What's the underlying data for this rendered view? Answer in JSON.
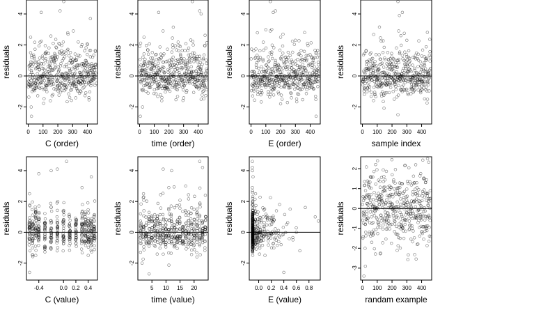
{
  "figure": {
    "ylabel": "residuals"
  },
  "chart_data": [
    {
      "type": "scatter",
      "xlabel": "C (order)",
      "xlim": [
        -12,
        468
      ],
      "ylim": [
        -3.1,
        4.9
      ],
      "xticks": [
        0,
        100,
        200,
        300,
        400
      ],
      "xtick_labels": [
        "0",
        "100",
        "200",
        "300",
        "400"
      ],
      "yticks": [
        -2,
        0,
        2,
        4
      ],
      "ytick_labels": [
        "-2",
        "0",
        "2",
        "4"
      ],
      "hline": 0,
      "generator": {
        "kind": "index",
        "n": 460,
        "x0": 1,
        "x1": 460,
        "sd": 0.62,
        "skew": 0.55,
        "seed": 11
      },
      "outliers": [
        [
          16,
          2.5
        ],
        [
          20,
          -2.0
        ],
        [
          88,
          4.1
        ],
        [
          240,
          4.8
        ],
        [
          215,
          4.2
        ],
        [
          305,
          2.9
        ],
        [
          420,
          3.7
        ],
        [
          22,
          -2.6
        ],
        [
          150,
          -1.6
        ],
        [
          410,
          -1.4
        ]
      ]
    },
    {
      "type": "scatter",
      "xlabel": "time (order)",
      "xlim": [
        -12,
        468
      ],
      "ylim": [
        -3.1,
        4.9
      ],
      "xticks": [
        0,
        100,
        200,
        300,
        400
      ],
      "xtick_labels": [
        "0",
        "100",
        "200",
        "300",
        "400"
      ],
      "yticks": [
        -2,
        0,
        2,
        4
      ],
      "ytick_labels": [
        "-2",
        "0",
        "2",
        "4"
      ],
      "hline": 0,
      "generator": {
        "kind": "index",
        "n": 460,
        "x0": 1,
        "x1": 460,
        "sd": 0.62,
        "skew": 0.55,
        "seed": 23
      },
      "outliers": [
        [
          20,
          -2.0
        ],
        [
          30,
          2.5
        ],
        [
          130,
          4.1
        ],
        [
          160,
          2.9
        ],
        [
          360,
          4.8
        ],
        [
          410,
          4.2
        ],
        [
          420,
          4.0
        ],
        [
          5,
          -2.6
        ],
        [
          420,
          -1.5
        ]
      ]
    },
    {
      "type": "scatter",
      "xlabel": "E (order)",
      "xlim": [
        -12,
        468
      ],
      "ylim": [
        -3.1,
        4.9
      ],
      "xticks": [
        0,
        100,
        200,
        300,
        400
      ],
      "xtick_labels": [
        "0",
        "100",
        "200",
        "300",
        "400"
      ],
      "yticks": [
        -2,
        0,
        2,
        4
      ],
      "ytick_labels": [
        "-2",
        "0",
        "2",
        "4"
      ],
      "hline": 0,
      "generator": {
        "kind": "index",
        "n": 460,
        "x0": 1,
        "x1": 460,
        "sd": 0.62,
        "skew": 0.55,
        "seed": 37
      },
      "outliers": [
        [
          130,
          4.8
        ],
        [
          150,
          4.1
        ],
        [
          165,
          4.2
        ],
        [
          140,
          3.0
        ],
        [
          130,
          2.9
        ],
        [
          200,
          2.5
        ],
        [
          440,
          -2.6
        ],
        [
          200,
          -1.8
        ],
        [
          210,
          -1.5
        ],
        [
          300,
          2.3
        ]
      ]
    },
    {
      "type": "scatter",
      "xlabel": "sample index",
      "xlim": [
        -12,
        468
      ],
      "ylim": [
        -3.1,
        4.9
      ],
      "xticks": [
        0,
        100,
        200,
        300,
        400
      ],
      "xtick_labels": [
        "0",
        "100",
        "200",
        "300",
        "400"
      ],
      "yticks": [
        -2,
        0,
        2,
        4
      ],
      "ytick_labels": [
        "-2",
        "0",
        "2",
        "4"
      ],
      "hline": 0,
      "generator": {
        "kind": "index",
        "n": 460,
        "x0": 1,
        "x1": 460,
        "sd": 0.62,
        "skew": 0.55,
        "seed": 41
      },
      "outliers": [
        [
          240,
          4.8
        ],
        [
          270,
          4.1
        ],
        [
          250,
          3.9
        ],
        [
          245,
          2.9
        ],
        [
          260,
          2.6
        ],
        [
          300,
          2.3
        ],
        [
          440,
          -1.5
        ],
        [
          130,
          -1.3
        ],
        [
          215,
          -1.5
        ],
        [
          240,
          -2.5
        ]
      ]
    },
    {
      "type": "scatter",
      "xlabel": "C (value)",
      "xlim": [
        -0.6,
        0.55
      ],
      "ylim": [
        -3.1,
        4.9
      ],
      "xticks": [
        -0.4,
        0.0,
        0.2,
        0.4
      ],
      "xtick_labels": [
        "-0.4",
        "0.0",
        "0.2",
        "0.4"
      ],
      "yticks": [
        -2,
        0,
        2,
        4
      ],
      "ytick_labels": [
        "-2",
        "0",
        "2",
        "4"
      ],
      "hline": 0,
      "generator": {
        "kind": "grid",
        "values": [
          -0.55,
          -0.5,
          -0.45,
          -0.4,
          -0.3,
          -0.2,
          -0.1,
          0.0,
          0.1,
          0.2,
          0.3,
          0.35,
          0.4,
          0.45,
          0.5
        ],
        "per": 30,
        "jitter": 0.008,
        "sd": 0.55,
        "skew": 0.5,
        "seed": 53
      },
      "outliers": [
        [
          -0.55,
          2.5
        ],
        [
          -0.4,
          3.8
        ],
        [
          -0.2,
          4.0
        ],
        [
          -0.1,
          4.1
        ],
        [
          0.05,
          4.6
        ],
        [
          0.3,
          2.9
        ],
        [
          0.45,
          3.6
        ],
        [
          -0.55,
          -2.6
        ],
        [
          -0.45,
          -1.5
        ],
        [
          0.4,
          -1.5
        ]
      ]
    },
    {
      "type": "scatter",
      "xlabel": "time (value)",
      "xlim": [
        0,
        25
      ],
      "ylim": [
        -3.1,
        4.9
      ],
      "xticks": [
        5,
        10,
        15,
        20
      ],
      "xtick_labels": [
        "5",
        "10",
        "15",
        "20"
      ],
      "yticks": [
        -2,
        0,
        2,
        4
      ],
      "ytick_labels": [
        "-2",
        "0",
        "2",
        "4"
      ],
      "hline": 0,
      "generator": {
        "kind": "grid",
        "values": [
          1,
          2,
          3,
          4,
          5,
          6,
          7,
          8,
          9,
          10,
          11,
          12,
          13,
          14,
          15,
          16,
          17,
          18,
          19,
          20,
          21,
          22,
          23,
          24
        ],
        "per": 19,
        "jitter": 0.18,
        "sd": 0.6,
        "skew": 0.5,
        "seed": 67
      },
      "outliers": [
        [
          1.5,
          -2.0
        ],
        [
          2,
          2.5
        ],
        [
          4,
          -2.7
        ],
        [
          9,
          4.1
        ],
        [
          11,
          2.9
        ],
        [
          12,
          4.0
        ],
        [
          22,
          4.6
        ],
        [
          23,
          4.2
        ],
        [
          21,
          -1.6
        ],
        [
          24,
          2.4
        ]
      ]
    },
    {
      "type": "scatter",
      "xlabel": "E (value)",
      "xlim": [
        -0.15,
        0.98
      ],
      "ylim": [
        -3.1,
        4.9
      ],
      "xticks": [
        0.0,
        0.2,
        0.4,
        0.6,
        0.8
      ],
      "xtick_labels": [
        "0.0",
        "0.2",
        "0.4",
        "0.6",
        "0.8"
      ],
      "yticks": [
        -2,
        0,
        2,
        4
      ],
      "ytick_labels": [
        "-2",
        "0",
        "2",
        "4"
      ],
      "hline": 0,
      "generator": {
        "kind": "skewx",
        "n": 460,
        "x0": -0.1,
        "scale": 0.17,
        "max": 0.95,
        "cluster": 0.55,
        "sd": 0.55,
        "skew": 0.6,
        "seed": 79
      },
      "outliers": [
        [
          -0.1,
          4.6
        ],
        [
          -0.1,
          4.2
        ],
        [
          -0.1,
          4.0
        ],
        [
          -0.09,
          3.6
        ],
        [
          -0.1,
          2.9
        ],
        [
          -0.05,
          2.5
        ],
        [
          0.4,
          -2.6
        ],
        [
          0.9,
          1.0
        ],
        [
          0.6,
          0.0
        ],
        [
          0.1,
          -1.5
        ]
      ]
    },
    {
      "type": "scatter",
      "xlabel": "randam example",
      "xlim": [
        -12,
        468
      ],
      "ylim": [
        -3.6,
        2.6
      ],
      "xticks": [
        0,
        100,
        200,
        300,
        400
      ],
      "xtick_labels": [
        "0",
        "100",
        "200",
        "300",
        "400"
      ],
      "yticks": [
        -3,
        -2,
        -1,
        0,
        1,
        2
      ],
      "ytick_labels": [
        "-3",
        "-2",
        "-1",
        "0",
        "1",
        "2"
      ],
      "hline": 0,
      "generator": {
        "kind": "index",
        "n": 460,
        "x0": 1,
        "x1": 460,
        "sd": 1.0,
        "skew": 0,
        "seed": 97
      },
      "outliers": [
        [
          10,
          -3.4
        ],
        [
          20,
          -2.9
        ],
        [
          440,
          2.5
        ],
        [
          360,
          2.2
        ]
      ]
    }
  ]
}
